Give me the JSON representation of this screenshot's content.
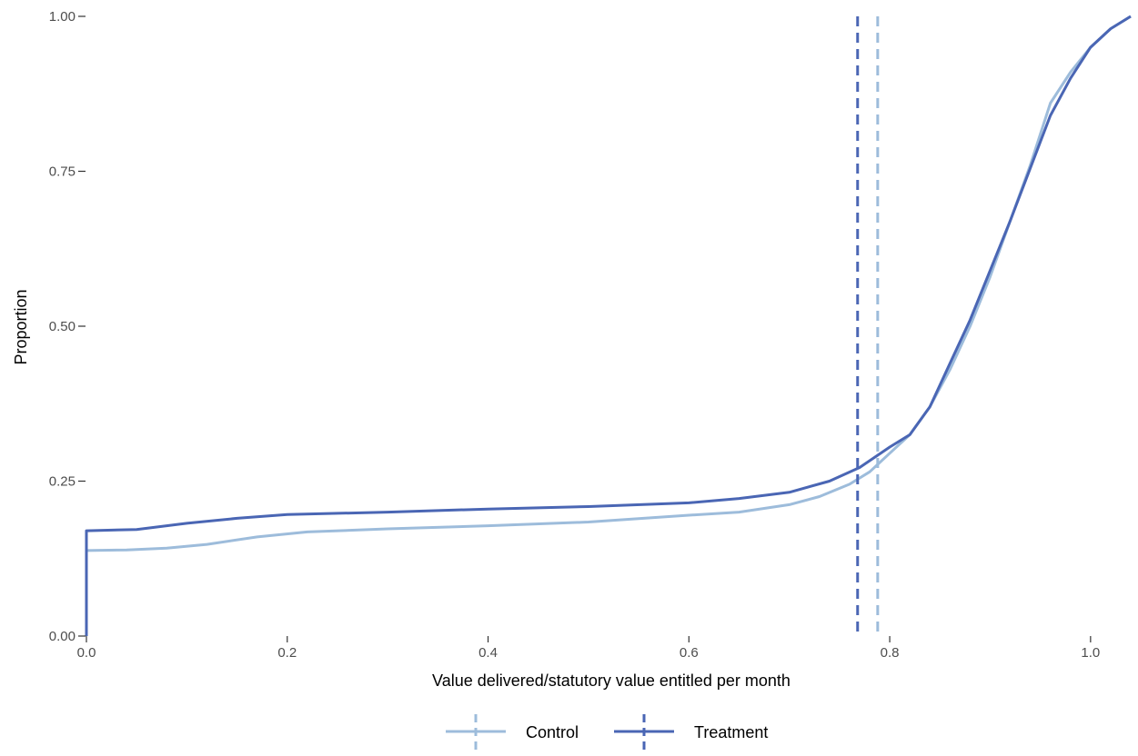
{
  "chart_data": {
    "type": "line",
    "subtype": "empirical-cdf-step",
    "title": "",
    "xlabel": "Value delivered/statutory value entitled per month",
    "ylabel": "Proportion",
    "xlim": [
      0.0,
      1.04
    ],
    "ylim": [
      0.0,
      1.0
    ],
    "x_ticks": [
      0.0,
      0.2,
      0.4,
      0.6,
      0.8,
      1.0
    ],
    "x_tick_labels": [
      "0.0",
      "0.2",
      "0.4",
      "0.6",
      "0.8",
      "1.0"
    ],
    "y_ticks": [
      0.0,
      0.25,
      0.5,
      0.75,
      1.0
    ],
    "y_tick_labels": [
      "0.00",
      "0.25",
      "0.50",
      "0.75",
      "1.00"
    ],
    "grid": false,
    "legend_position": "bottom",
    "series": [
      {
        "name": "Control",
        "color": "#9dbcdb",
        "vline_x": 0.788,
        "points": [
          [
            0.0,
            0.0
          ],
          [
            0.0,
            0.138
          ],
          [
            0.04,
            0.139
          ],
          [
            0.08,
            0.142
          ],
          [
            0.12,
            0.148
          ],
          [
            0.17,
            0.16
          ],
          [
            0.22,
            0.168
          ],
          [
            0.3,
            0.173
          ],
          [
            0.4,
            0.178
          ],
          [
            0.5,
            0.184
          ],
          [
            0.6,
            0.195
          ],
          [
            0.65,
            0.2
          ],
          [
            0.7,
            0.212
          ],
          [
            0.73,
            0.225
          ],
          [
            0.76,
            0.245
          ],
          [
            0.78,
            0.265
          ],
          [
            0.8,
            0.295
          ],
          [
            0.82,
            0.325
          ],
          [
            0.84,
            0.37
          ],
          [
            0.86,
            0.43
          ],
          [
            0.88,
            0.5
          ],
          [
            0.9,
            0.58
          ],
          [
            0.92,
            0.67
          ],
          [
            0.94,
            0.76
          ],
          [
            0.96,
            0.86
          ],
          [
            0.98,
            0.91
          ],
          [
            1.0,
            0.95
          ],
          [
            1.02,
            0.98
          ],
          [
            1.04,
            1.0
          ]
        ]
      },
      {
        "name": "Treatment",
        "color": "#4a66b4",
        "vline_x": 0.768,
        "points": [
          [
            0.0,
            0.0
          ],
          [
            0.0,
            0.17
          ],
          [
            0.05,
            0.172
          ],
          [
            0.1,
            0.182
          ],
          [
            0.15,
            0.19
          ],
          [
            0.2,
            0.196
          ],
          [
            0.3,
            0.2
          ],
          [
            0.4,
            0.205
          ],
          [
            0.5,
            0.209
          ],
          [
            0.6,
            0.215
          ],
          [
            0.65,
            0.222
          ],
          [
            0.7,
            0.232
          ],
          [
            0.74,
            0.25
          ],
          [
            0.77,
            0.272
          ],
          [
            0.8,
            0.305
          ],
          [
            0.82,
            0.325
          ],
          [
            0.84,
            0.37
          ],
          [
            0.86,
            0.44
          ],
          [
            0.88,
            0.51
          ],
          [
            0.9,
            0.59
          ],
          [
            0.92,
            0.67
          ],
          [
            0.94,
            0.755
          ],
          [
            0.96,
            0.84
          ],
          [
            0.98,
            0.9
          ],
          [
            1.0,
            0.95
          ],
          [
            1.02,
            0.98
          ],
          [
            1.04,
            1.0
          ]
        ]
      }
    ]
  }
}
